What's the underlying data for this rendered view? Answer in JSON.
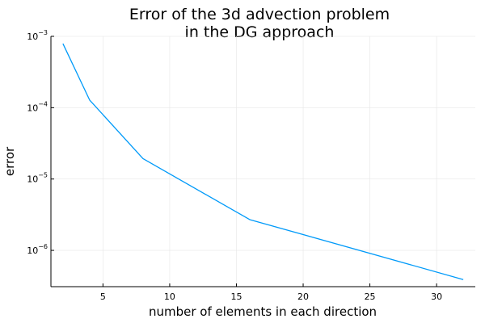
{
  "chart_data": {
    "type": "line",
    "title_lines": [
      "Error of the 3d advection problem",
      "in the DG approach"
    ],
    "xlabel": "number of elements in each direction",
    "ylabel": "error",
    "y_scale": "log10",
    "grid": true,
    "legend": "none",
    "xlim": [
      1.1,
      32.9
    ],
    "ylim": [
      3.1e-07,
      0.001
    ],
    "x_ticks": [
      5,
      10,
      15,
      20,
      25,
      30
    ],
    "y_tick_exponents": [
      -3,
      -4,
      -5,
      -6
    ],
    "y_tick_base": "10",
    "series": [
      {
        "color": "#009af9",
        "x": [
          2,
          4,
          8,
          16,
          32
        ],
        "y": [
          0.00079,
          0.000128,
          1.93e-05,
          2.7e-06,
          3.9e-07
        ]
      }
    ]
  }
}
